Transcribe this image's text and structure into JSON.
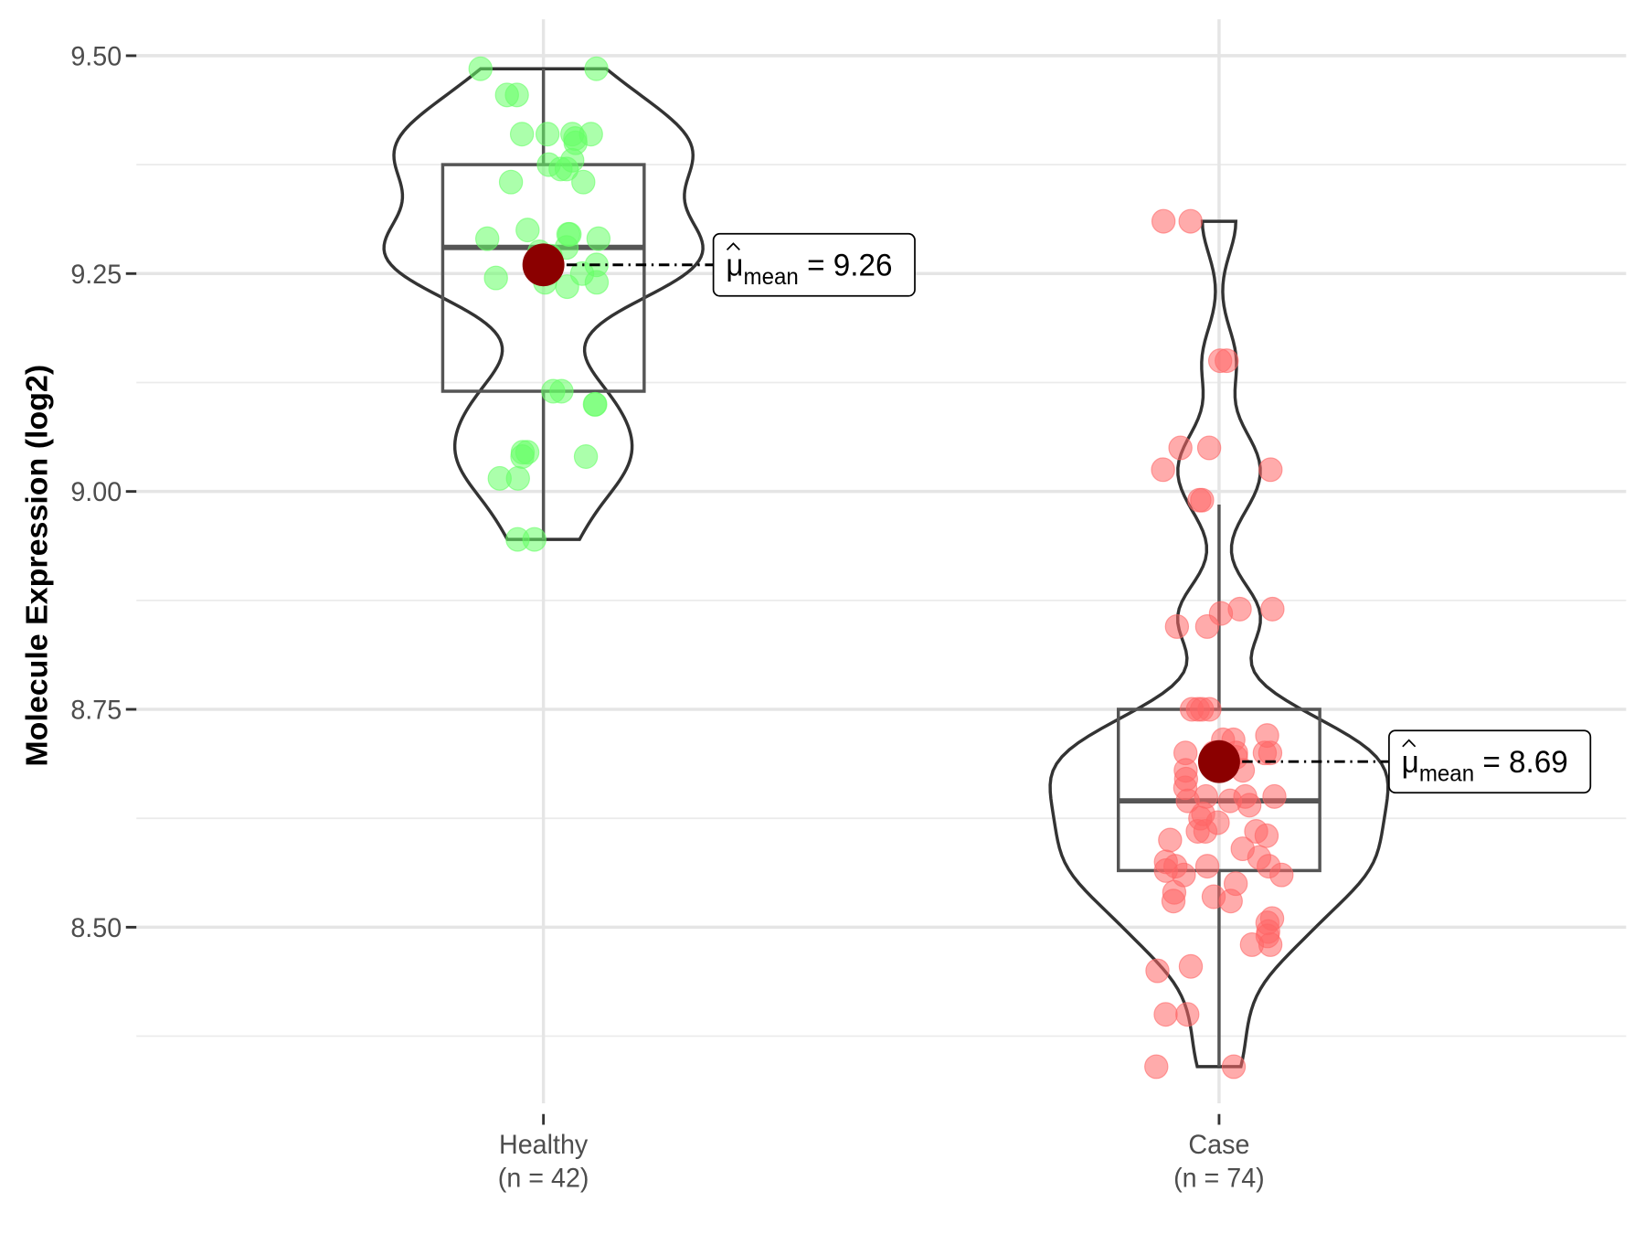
{
  "chart_data": {
    "type": "violin",
    "title": "",
    "xlabel": "",
    "ylabel": "Molecule Expression (log2)",
    "ylim": [
      8.32,
      9.55
    ],
    "yticks": [
      9.5,
      9.25,
      9.0,
      8.75,
      8.5
    ],
    "ytick_labels": [
      "9.50",
      "9.25",
      "9.00",
      "8.75",
      "8.50"
    ],
    "grid": true,
    "legend": "none",
    "groups": [
      {
        "name": "Healthy",
        "label_line1": "Healthy",
        "label_line2": "(n = 42)",
        "n": 42,
        "color": "#66ff66",
        "mean": 9.26,
        "mean_label_prefix": "μ",
        "mean_label_sub": "mean",
        "mean_label_value": "= 9.26",
        "box": {
          "whisker_low": 8.945,
          "q1": 9.115,
          "median": 9.28,
          "q3": 9.375,
          "whisker_high": 9.485
        },
        "values": [
          9.485,
          9.485,
          9.455,
          9.455,
          9.41,
          9.41,
          9.41,
          9.405,
          9.4,
          9.375,
          9.37,
          9.37,
          9.355,
          9.355,
          9.3,
          9.295,
          9.295,
          9.29,
          9.28,
          9.275,
          9.26,
          9.25,
          9.245,
          9.24,
          9.24,
          9.235,
          9.115,
          9.115,
          9.1,
          9.1,
          9.045,
          9.045,
          9.04,
          9.04,
          9.015,
          9.015,
          8.945,
          8.945,
          9.29,
          9.27,
          9.38,
          9.41
        ]
      },
      {
        "name": "Case",
        "label_line1": "Case",
        "label_line2": "(n = 74)",
        "n": 74,
        "color": "#ff6666",
        "mean": 8.69,
        "mean_label_prefix": "μ",
        "mean_label_sub": "mean",
        "mean_label_value": "= 8.69",
        "box": {
          "whisker_low": 8.34,
          "q1": 8.565,
          "median": 8.645,
          "q3": 8.75,
          "whisker_high": 8.985
        },
        "values": [
          9.31,
          9.31,
          9.15,
          9.15,
          9.05,
          9.05,
          9.025,
          9.025,
          8.99,
          8.99,
          8.865,
          8.865,
          8.86,
          8.845,
          8.845,
          8.75,
          8.75,
          8.75,
          8.75,
          8.715,
          8.715,
          8.7,
          8.7,
          8.7,
          8.7,
          8.7,
          8.695,
          8.69,
          8.685,
          8.68,
          8.65,
          8.65,
          8.65,
          8.645,
          8.645,
          8.625,
          8.61,
          8.61,
          8.61,
          8.605,
          8.6,
          8.58,
          8.575,
          8.57,
          8.57,
          8.565,
          8.56,
          8.56,
          8.55,
          8.54,
          8.535,
          8.53,
          8.53,
          8.51,
          8.505,
          8.495,
          8.49,
          8.48,
          8.48,
          8.455,
          8.45,
          8.4,
          8.4,
          8.34,
          8.34,
          8.66,
          8.64,
          8.62,
          8.59,
          8.67,
          8.72,
          8.68,
          8.63,
          8.57
        ]
      }
    ]
  }
}
